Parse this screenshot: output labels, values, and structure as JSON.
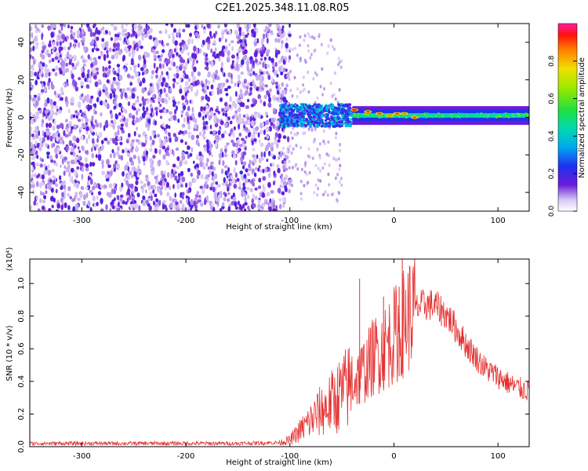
{
  "title": "C2E1.2025.348.11.08.R05",
  "chart_data": [
    {
      "type": "heatmap",
      "name": "spectrogram",
      "xlabel": "Height of straight line (km)",
      "ylabel": "Frequency (Hz)",
      "xlim": [
        -350,
        130
      ],
      "ylim": [
        -50,
        50
      ],
      "xticks": [
        -300,
        -200,
        -100,
        0,
        100
      ],
      "yticks": [
        -40,
        -20,
        0,
        20,
        40
      ],
      "colorbar": {
        "label": "Normalized spectral amplitude",
        "range": [
          0,
          1
        ],
        "ticks": [
          0.0,
          0.2,
          0.4,
          0.6,
          0.8
        ],
        "colormap": "rainbow"
      },
      "regions": [
        {
          "name": "noise",
          "x_range": [
            -350,
            -100
          ],
          "freq_range": [
            -50,
            50
          ],
          "amplitude": 0.12
        },
        {
          "name": "transition",
          "x_range": [
            -110,
            -40
          ],
          "freq_center": 1,
          "freq_halfwidth": 6,
          "amplitude": 0.35
        },
        {
          "name": "signal-band",
          "x_range": [
            -40,
            130
          ],
          "freq_center": 1,
          "freq_halfwidth": 3,
          "amplitude": 0.4
        },
        {
          "name": "peaks",
          "x_range": [
            -40,
            20
          ],
          "freq_center": 2,
          "amplitude": 0.9
        }
      ],
      "peak_points": [
        {
          "x": -38,
          "f": 4,
          "a": 0.95
        },
        {
          "x": -25,
          "f": 3,
          "a": 0.9
        },
        {
          "x": -14,
          "f": 2,
          "a": 0.9
        },
        {
          "x": -4,
          "f": 1,
          "a": 0.85
        },
        {
          "x": 3,
          "f": 2,
          "a": 0.9
        },
        {
          "x": 10,
          "f": 2,
          "a": 0.85
        },
        {
          "x": 20,
          "f": 0,
          "a": 0.9
        }
      ]
    },
    {
      "type": "line",
      "name": "snr",
      "xlabel": "Height of straight line (km)",
      "ylabel": "SNR (10 * v/v)",
      "y_multiplier": "(x10⁴)",
      "xlim": [
        -350,
        130
      ],
      "ylim": [
        0,
        1.15
      ],
      "xticks": [
        -300,
        -200,
        -100,
        0,
        100
      ],
      "yticks": [
        0.0,
        0.2,
        0.4,
        0.6,
        0.8,
        1.0
      ],
      "color": "#e53030",
      "series": [
        {
          "name": "SNR",
          "x": [
            -350,
            -300,
            -250,
            -200,
            -150,
            -110,
            -100,
            -95,
            -90,
            -85,
            -80,
            -75,
            -70,
            -65,
            -60,
            -55,
            -50,
            -45,
            -40,
            -35,
            -30,
            -25,
            -20,
            -15,
            -10,
            -5,
            0,
            5,
            10,
            15,
            20,
            25,
            30,
            35,
            40,
            45,
            50,
            55,
            60,
            65,
            70,
            75,
            80,
            85,
            90,
            95,
            100,
            105,
            110,
            115,
            120,
            125,
            130
          ],
          "values": [
            0.02,
            0.02,
            0.02,
            0.02,
            0.02,
            0.025,
            0.04,
            0.07,
            0.1,
            0.13,
            0.16,
            0.19,
            0.22,
            0.24,
            0.27,
            0.3,
            0.33,
            0.36,
            0.39,
            0.42,
            0.46,
            0.5,
            0.55,
            0.58,
            0.6,
            0.64,
            0.68,
            0.72,
            0.77,
            0.81,
            0.84,
            0.86,
            0.87,
            0.87,
            0.86,
            0.84,
            0.81,
            0.77,
            0.72,
            0.67,
            0.62,
            0.58,
            0.54,
            0.5,
            0.47,
            0.45,
            0.43,
            0.41,
            0.39,
            0.37,
            0.36,
            0.35,
            0.34
          ]
        }
      ],
      "spikes": [
        {
          "x": -33,
          "y": 1.03
        },
        {
          "x": 8,
          "y": 1.15
        },
        {
          "x": 5,
          "y": 0.98
        },
        {
          "x": -10,
          "y": 0.92
        }
      ]
    }
  ]
}
